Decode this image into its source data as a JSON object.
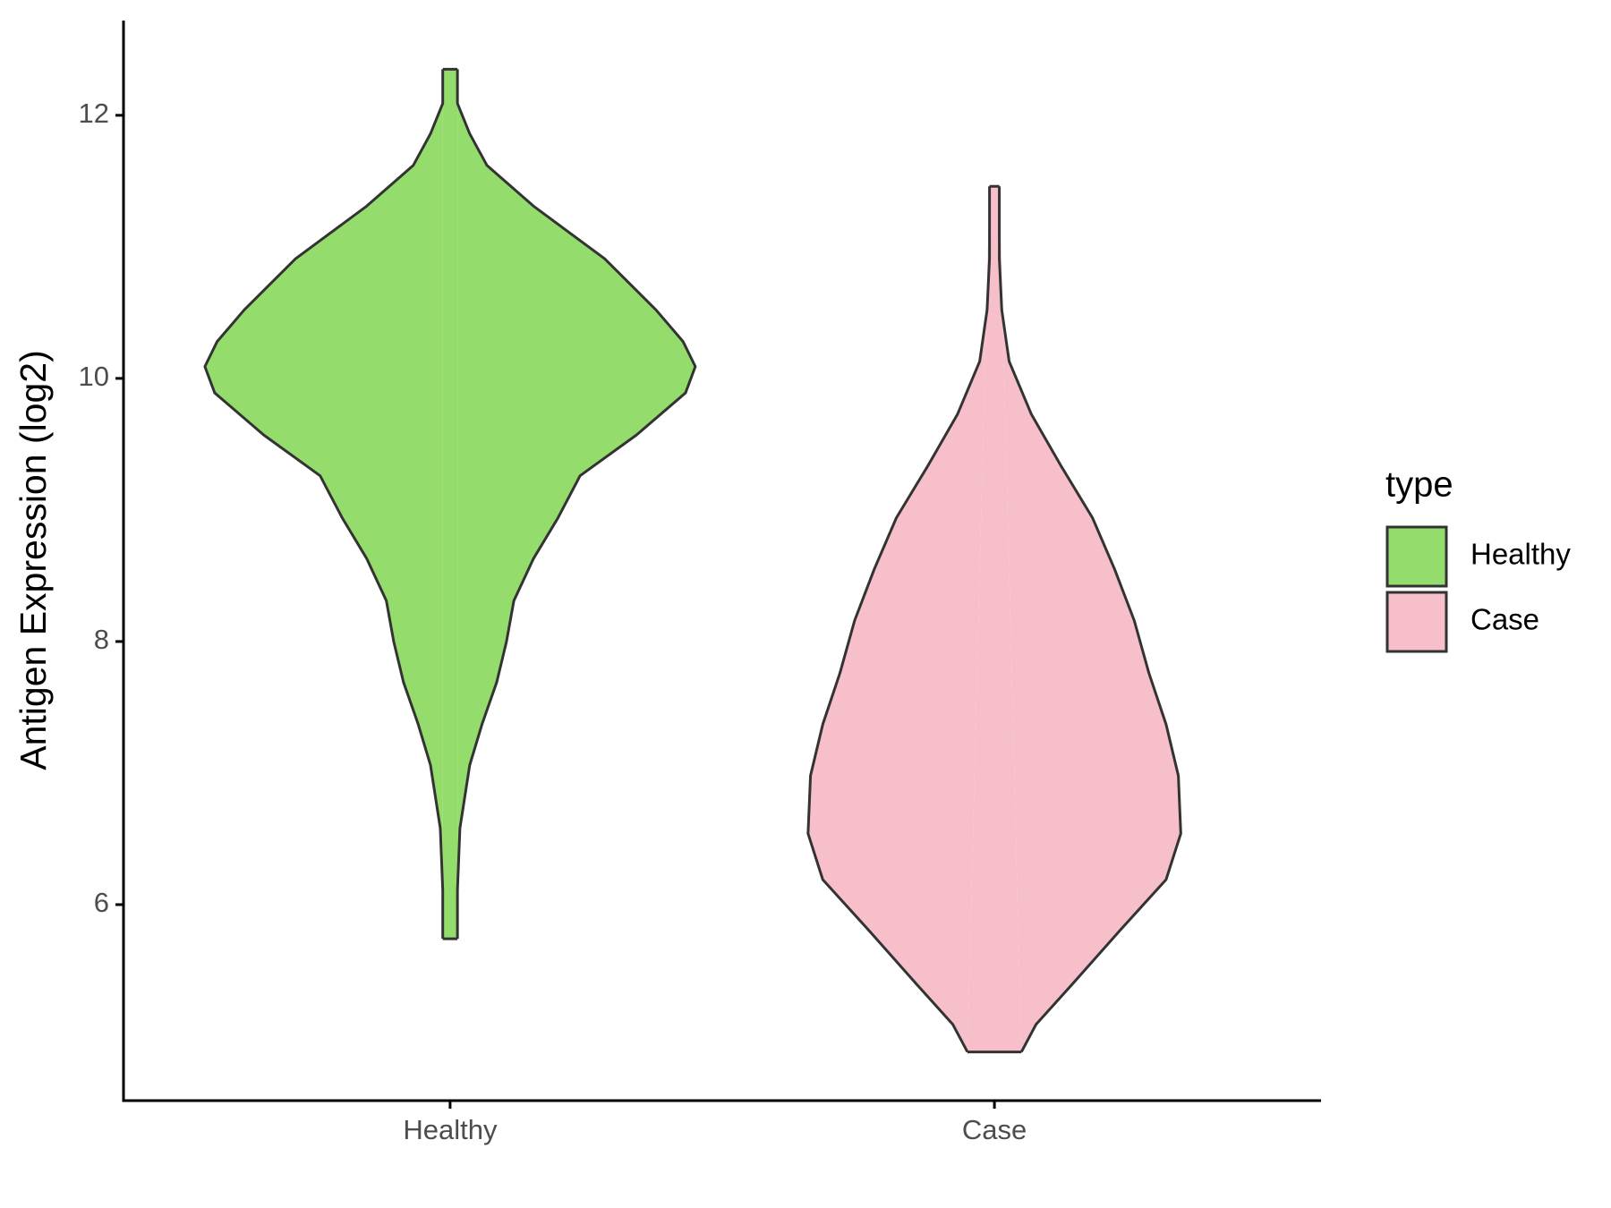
{
  "chart_data": {
    "type": "violin",
    "y_label": "Antigen Expression (log2)",
    "categories": [
      "Healthy",
      "Case"
    ],
    "legend_title": "type",
    "legend_position": "right",
    "series": [
      {
        "name": "Healthy",
        "color": "#94dd6c",
        "y": [
          12.35,
          12.09,
          11.86,
          11.62,
          11.31,
          10.91,
          10.52,
          10.28,
          10.09,
          9.89,
          9.57,
          9.26,
          8.94,
          8.63,
          8.31,
          8.0,
          7.69,
          7.37,
          7.06,
          6.58,
          6.11,
          5.74
        ],
        "density": [
          0.03,
          0.03,
          0.08,
          0.15,
          0.34,
          0.63,
          0.84,
          0.95,
          1.0,
          0.96,
          0.76,
          0.53,
          0.44,
          0.34,
          0.26,
          0.23,
          0.19,
          0.13,
          0.08,
          0.04,
          0.03,
          0.03
        ]
      },
      {
        "name": "Case",
        "color": "#f7bfca",
        "y": [
          11.46,
          10.91,
          10.52,
          10.13,
          9.73,
          9.34,
          8.94,
          8.55,
          8.16,
          7.76,
          7.37,
          6.98,
          6.54,
          6.19,
          5.8,
          5.4,
          5.09,
          4.88
        ],
        "density": [
          0.02,
          0.02,
          0.03,
          0.06,
          0.15,
          0.27,
          0.4,
          0.49,
          0.57,
          0.63,
          0.7,
          0.75,
          0.76,
          0.7,
          0.51,
          0.32,
          0.17,
          0.11
        ]
      }
    ],
    "ylim": [
      4.51,
      12.72
    ],
    "yticks": [
      6,
      8,
      10,
      12
    ],
    "grid": false
  }
}
